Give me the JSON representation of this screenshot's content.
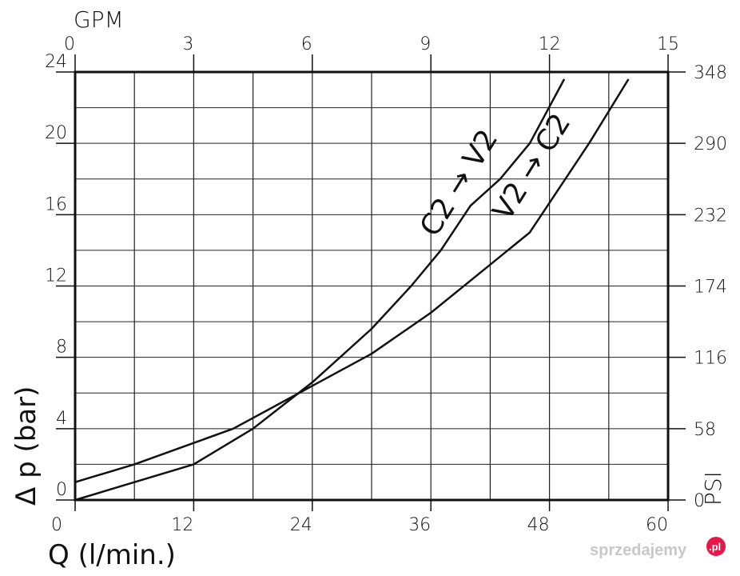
{
  "chart_data": {
    "type": "line",
    "title": "",
    "xlabel": "Q (l/min.)",
    "ylabel": "Δ p (bar)",
    "x2label": "GPM",
    "y2label": "PSI",
    "x_ticks": [
      "0",
      "12",
      "24",
      "36",
      "48",
      "60"
    ],
    "x_tick_values": [
      0,
      12,
      24,
      36,
      48,
      60
    ],
    "x2_ticks": [
      "0",
      "3",
      "6",
      "9",
      "12",
      "15"
    ],
    "x2_tick_values": [
      0,
      3,
      6,
      9,
      12,
      15
    ],
    "y_ticks": [
      "0",
      "4",
      "8",
      "12",
      "16",
      "20",
      "24"
    ],
    "y_tick_values": [
      0,
      4,
      8,
      12,
      16,
      20,
      24
    ],
    "y2_ticks": [
      "0",
      "58",
      "116",
      "174",
      "232",
      "290",
      "348"
    ],
    "y2_tick_values": [
      0,
      58,
      116,
      174,
      232,
      290,
      348
    ],
    "xlim": [
      0,
      60
    ],
    "ylim": [
      0,
      24
    ],
    "x2lim": [
      0,
      15
    ],
    "y2lim": [
      0,
      348
    ],
    "grid": true,
    "series": [
      {
        "name": "C2 → V2",
        "x": [
          0,
          6,
          12,
          18,
          24,
          30,
          34,
          37,
          40,
          43,
          46,
          49.5
        ],
        "y": [
          0,
          1.0,
          2.0,
          4.0,
          6.6,
          9.6,
          12.0,
          14.0,
          16.5,
          18.0,
          20.0,
          23.6
        ]
      },
      {
        "name": "V2 → C2",
        "x": [
          0,
          6,
          12,
          16,
          20,
          24,
          30,
          36,
          42,
          46,
          52,
          56
        ],
        "y": [
          1.0,
          2.0,
          3.2,
          4.0,
          5.2,
          6.4,
          8.2,
          10.5,
          13.2,
          15.0,
          20.0,
          23.6
        ]
      }
    ]
  },
  "watermark": {
    "text": "sprzedajemy",
    "suffix": ".pl"
  }
}
